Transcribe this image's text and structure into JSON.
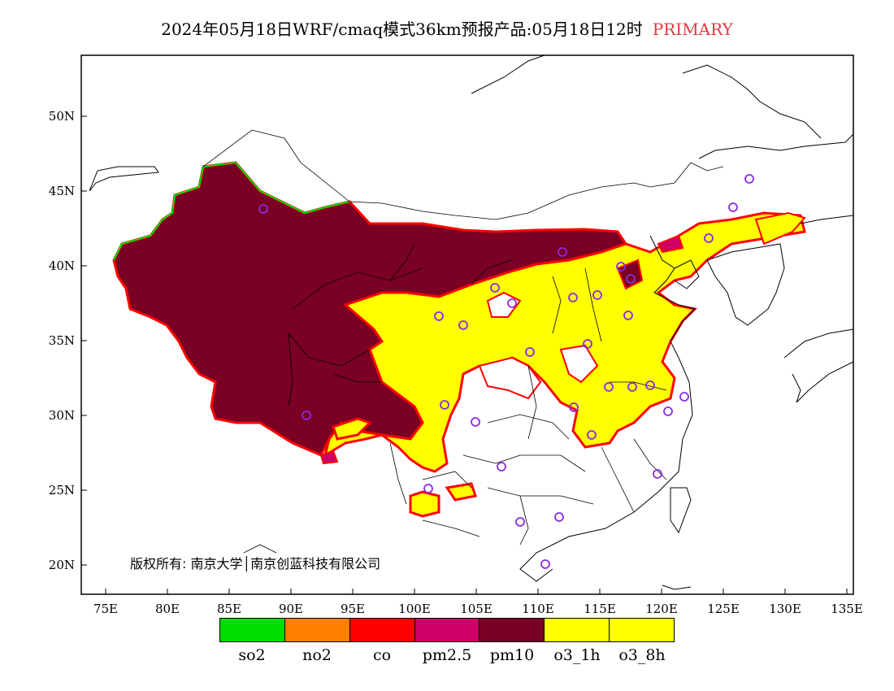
{
  "title": {
    "text": "2024年05月18日WRF/cmaq模式36km预报产品:05月18日12时",
    "tag": "PRIMARY",
    "tag_color": "#e0393b"
  },
  "axes": {
    "lat_labels": [
      "50N",
      "45N",
      "40N",
      "35N",
      "30N",
      "25N",
      "20N"
    ],
    "lon_labels": [
      "75E",
      "80E",
      "85E",
      "90E",
      "95E",
      "100E",
      "105E",
      "110E",
      "115E",
      "120E",
      "125E",
      "130E",
      "135E"
    ]
  },
  "copyright": "版权所有: 南京大学│南京创蓝科技有限公司",
  "legend": [
    {
      "label": "so2",
      "color": "#00dd00"
    },
    {
      "label": "no2",
      "color": "#ff7f00"
    },
    {
      "label": "co",
      "color": "#ff0000"
    },
    {
      "label": "pm2.5",
      "color": "#cc0066"
    },
    {
      "label": "pm10",
      "color": "#7a0024"
    },
    {
      "label": "o3_1h",
      "color": "#ffff00"
    },
    {
      "label": "o3_8h",
      "color": "#ffff00"
    }
  ],
  "colors": {
    "pm10": "#7a0024",
    "o3": "#ffff00",
    "outline_red": "#ff0000",
    "outline_green": "#00dd00",
    "pm25": "#cc0066",
    "city_marker": "#8a2be2"
  },
  "city_marker_icon": "circle-icon"
}
